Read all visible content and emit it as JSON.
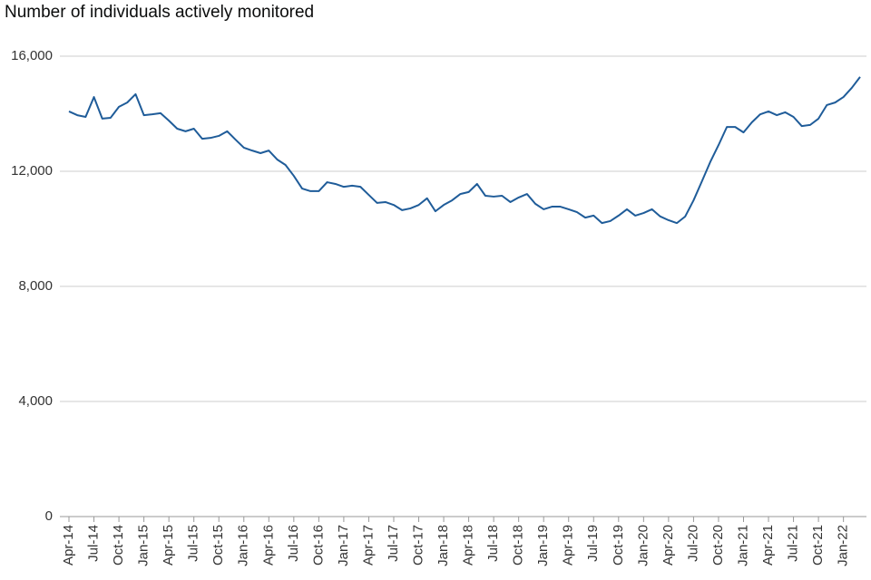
{
  "chart_data": {
    "type": "line",
    "title": "Number of individuals actively monitored",
    "categories": [
      "Apr-14",
      null,
      null,
      "Jul-14",
      null,
      null,
      "Oct-14",
      null,
      null,
      "Jan-15",
      null,
      null,
      "Apr-15",
      null,
      null,
      "Jul-15",
      null,
      null,
      "Oct-15",
      null,
      null,
      "Jan-16",
      null,
      null,
      "Apr-16",
      null,
      null,
      "Jul-16",
      null,
      null,
      "Oct-16",
      null,
      null,
      "Jan-17",
      null,
      null,
      "Apr-17",
      null,
      null,
      "Jul-17",
      null,
      null,
      "Oct-17",
      null,
      null,
      "Jan-18",
      null,
      null,
      "Apr-18",
      null,
      null,
      "Jul-18",
      null,
      null,
      "Oct-18",
      null,
      null,
      "Jan-19",
      null,
      null,
      "Apr-19",
      null,
      null,
      "Jul-19",
      null,
      null,
      "Oct-19",
      null,
      null,
      "Jan-20",
      null,
      null,
      "Apr-20",
      null,
      null,
      "Jul-20",
      null,
      null,
      "Oct-20",
      null,
      null,
      "Jan-21",
      null,
      null,
      "Apr-21",
      null,
      null,
      "Jul-21",
      null,
      null,
      "Oct-21",
      null,
      null,
      "Jan-22",
      null,
      null
    ],
    "series": [
      {
        "color": "#1f5c99",
        "values": [
          14080,
          13950,
          13890,
          14580,
          13830,
          13860,
          14240,
          14390,
          14680,
          13950,
          13980,
          14020,
          13760,
          13480,
          13390,
          13480,
          13130,
          13160,
          13230,
          13390,
          13100,
          12820,
          12720,
          12630,
          12720,
          12410,
          12220,
          11840,
          11400,
          11310,
          11310,
          11620,
          11560,
          11460,
          11500,
          11460,
          11180,
          10900,
          10930,
          10830,
          10650,
          10710,
          10830,
          11060,
          10610,
          10830,
          10990,
          11210,
          11280,
          11560,
          11150,
          11120,
          11150,
          10930,
          11090,
          11210,
          10870,
          10680,
          10770,
          10770,
          10680,
          10580,
          10390,
          10460,
          10200,
          10270,
          10460,
          10680,
          10460,
          10550,
          10680,
          10430,
          10300,
          10200,
          10430,
          10990,
          11650,
          12320,
          12910,
          13540,
          13540,
          13350,
          13700,
          13980,
          14080,
          13950,
          14050,
          13890,
          13570,
          13610,
          13830,
          14300,
          14390,
          14580,
          14900,
          15280
        ]
      }
    ],
    "ylim": [
      0,
      16000
    ],
    "yticks": [
      0,
      {
        "value": 4000,
        "label": "4,000"
      },
      {
        "value": 8000,
        "label": "8,000"
      },
      {
        "value": 12000,
        "label": "12,000"
      },
      {
        "value": 16000,
        "label": "16,000"
      }
    ],
    "grid": true
  }
}
